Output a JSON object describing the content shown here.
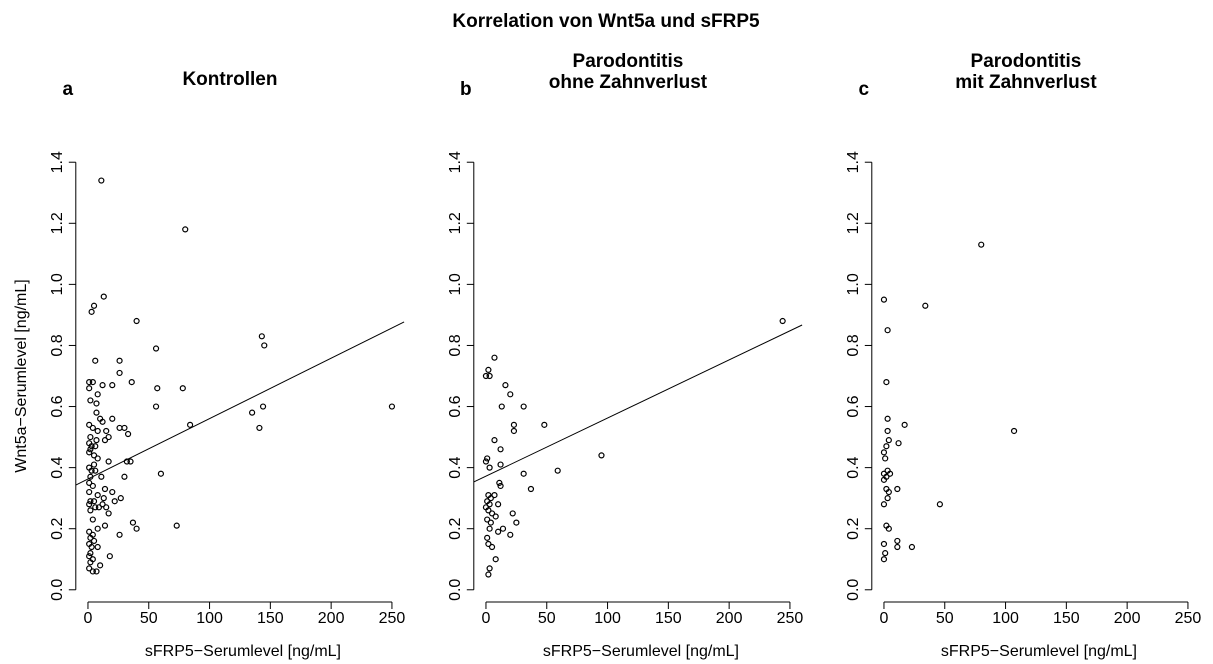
{
  "title": "Korrelation von Wnt5a und sFRP5",
  "chart_data": [
    {
      "type": "scatter",
      "label": "a",
      "title": [
        "Kontrollen"
      ],
      "xlabel": "sFRP5−Serumlevel [ng/mL]",
      "ylabel": "Wnt5a−Serumlevel [ng/mL]",
      "xlim": [
        -10,
        260
      ],
      "ylim": [
        -0.04,
        1.44
      ],
      "xticks": [
        0,
        50,
        100,
        150,
        200,
        250
      ],
      "yticks": [
        {
          "value": 0,
          "label": "0.0"
        },
        0.2,
        0.4,
        0.6,
        0.8,
        {
          "value": 1,
          "label": "1.0"
        },
        1.2,
        1.4
      ],
      "color": "#000000",
      "x": [
        11,
        80,
        13,
        5,
        3,
        40,
        143,
        145,
        56,
        6,
        26,
        26,
        78,
        57,
        20,
        12,
        1,
        4,
        1,
        8,
        7,
        2,
        36,
        144,
        250,
        56,
        135,
        84,
        141,
        7,
        10,
        12,
        20,
        26,
        30,
        33,
        15,
        8,
        4,
        1,
        2,
        7,
        14,
        17,
        1,
        3,
        6,
        2,
        1,
        5,
        8,
        17,
        32,
        35,
        5,
        1,
        3,
        6,
        60,
        11,
        30,
        2,
        1,
        4,
        14,
        20,
        1,
        8,
        13,
        27,
        2,
        5,
        22,
        1,
        12,
        6,
        9,
        15,
        2,
        17,
        4,
        37,
        73,
        14,
        40,
        8,
        1,
        4,
        26,
        2,
        5,
        1,
        3,
        8,
        2,
        18,
        1,
        4,
        2,
        10,
        1,
        4,
        7
      ],
      "y": [
        1.34,
        1.18,
        0.96,
        0.93,
        0.91,
        0.88,
        0.83,
        0.8,
        0.79,
        0.75,
        0.75,
        0.71,
        0.66,
        0.66,
        0.67,
        0.67,
        0.68,
        0.68,
        0.66,
        0.64,
        0.61,
        0.62,
        0.68,
        0.6,
        0.6,
        0.6,
        0.58,
        0.54,
        0.53,
        0.58,
        0.56,
        0.55,
        0.56,
        0.53,
        0.53,
        0.51,
        0.52,
        0.52,
        0.53,
        0.54,
        0.5,
        0.49,
        0.49,
        0.5,
        0.48,
        0.47,
        0.47,
        0.46,
        0.45,
        0.44,
        0.43,
        0.42,
        0.42,
        0.42,
        0.41,
        0.4,
        0.39,
        0.39,
        0.38,
        0.37,
        0.37,
        0.37,
        0.35,
        0.34,
        0.33,
        0.32,
        0.32,
        0.31,
        0.3,
        0.3,
        0.29,
        0.29,
        0.29,
        0.28,
        0.28,
        0.27,
        0.27,
        0.27,
        0.26,
        0.25,
        0.23,
        0.22,
        0.21,
        0.21,
        0.2,
        0.2,
        0.19,
        0.18,
        0.18,
        0.17,
        0.16,
        0.15,
        0.14,
        0.14,
        0.12,
        0.11,
        0.11,
        0.1,
        0.09,
        0.08,
        0.07,
        0.06,
        0.06
      ],
      "fit_line": {
        "x": [
          -10,
          260
        ],
        "y": [
          0.343,
          0.877
        ]
      }
    },
    {
      "type": "scatter",
      "label": "b",
      "title": [
        "Parodontitis",
        "ohne Zahnverlust"
      ],
      "xlabel": "sFRP5−Serumlevel [ng/mL]",
      "xlim": [
        -10,
        260
      ],
      "ylim": [
        -0.04,
        1.44
      ],
      "xticks": [
        0,
        50,
        100,
        150,
        200,
        250
      ],
      "yticks": [
        {
          "value": 0,
          "label": "0.0"
        },
        0.2,
        0.4,
        0.6,
        0.8,
        {
          "value": 1,
          "label": "1.0"
        },
        1.2,
        1.4
      ],
      "color": "#000000",
      "x": [
        244,
        7,
        2,
        0,
        3,
        16,
        20,
        31,
        13,
        23,
        23,
        48,
        7,
        12,
        95,
        1,
        0,
        3,
        12,
        59,
        31,
        11,
        12,
        37,
        2,
        4,
        7,
        1,
        3,
        10,
        0,
        2,
        5,
        22,
        1,
        8,
        4,
        25,
        14,
        3,
        10,
        20,
        1,
        2,
        5,
        8,
        3,
        2
      ],
      "y": [
        0.88,
        0.76,
        0.72,
        0.7,
        0.7,
        0.67,
        0.64,
        0.6,
        0.6,
        0.54,
        0.52,
        0.54,
        0.49,
        0.46,
        0.44,
        0.43,
        0.42,
        0.4,
        0.41,
        0.39,
        0.38,
        0.35,
        0.34,
        0.33,
        0.31,
        0.3,
        0.31,
        0.29,
        0.28,
        0.28,
        0.27,
        0.26,
        0.25,
        0.25,
        0.23,
        0.24,
        0.22,
        0.22,
        0.2,
        0.2,
        0.19,
        0.18,
        0.17,
        0.15,
        0.14,
        0.1,
        0.07,
        0.05
      ],
      "fit_line": {
        "x": [
          -10,
          260
        ],
        "y": [
          0.353,
          0.867
        ]
      }
    },
    {
      "type": "scatter",
      "label": "c",
      "title": [
        "Parodontitis",
        "mit Zahnverlust"
      ],
      "xlabel": "sFRP5−Serumlevel  [ng/mL]",
      "xlim": [
        -10,
        260
      ],
      "ylim": [
        -0.04,
        1.44
      ],
      "xticks": [
        0,
        50,
        100,
        150,
        200,
        250
      ],
      "yticks": [
        {
          "value": 0,
          "label": "0.0"
        },
        0.2,
        0.4,
        0.6,
        0.8,
        {
          "value": 1,
          "label": "1.0"
        },
        1.2,
        1.4
      ],
      "color": "#000000",
      "x": [
        80,
        0,
        34,
        3,
        2,
        3,
        17,
        3,
        107,
        4,
        12,
        2,
        0,
        1,
        3,
        0,
        2,
        5,
        0,
        11,
        2,
        4,
        3,
        46,
        0,
        2,
        4,
        11,
        0,
        23,
        11,
        1,
        0
      ],
      "y": [
        1.13,
        0.95,
        0.93,
        0.85,
        0.68,
        0.56,
        0.54,
        0.52,
        0.52,
        0.49,
        0.48,
        0.47,
        0.45,
        0.43,
        0.39,
        0.38,
        0.37,
        0.38,
        0.36,
        0.33,
        0.33,
        0.32,
        0.3,
        0.28,
        0.28,
        0.21,
        0.2,
        0.16,
        0.15,
        0.14,
        0.14,
        0.12,
        0.1
      ]
    }
  ]
}
